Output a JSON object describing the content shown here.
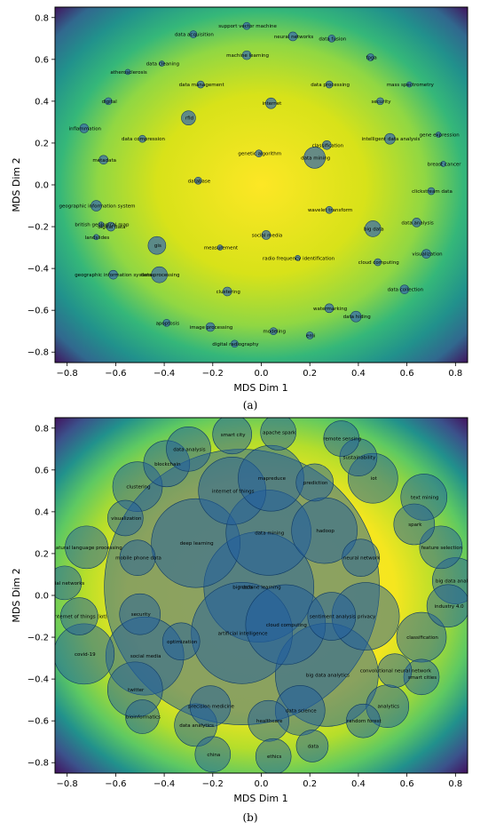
{
  "chart_data": [
    {
      "type": "scatter",
      "caption": "(a)",
      "xlabel": "MDS Dim 1",
      "ylabel": "MDS Dim 2",
      "xlim": [
        -0.85,
        0.85
      ],
      "ylim": [
        -0.85,
        0.85
      ],
      "xticks": [
        "−0.8",
        "−0.6",
        "−0.4",
        "−0.2",
        "0.0",
        "0.2",
        "0.4",
        "0.6",
        "0.8"
      ],
      "yticks": [
        "0.8",
        "0.6",
        "0.4",
        "0.2",
        "0.0",
        "−0.2",
        "−0.4",
        "−0.6",
        "−0.8"
      ],
      "background": "density heatmap (viridis)",
      "point_color": "#3b6ea8",
      "points": [
        {
          "label": "data acquisition",
          "x": -0.28,
          "y": 0.72,
          "size": 4
        },
        {
          "label": "support vector machine",
          "x": -0.06,
          "y": 0.76,
          "size": 4
        },
        {
          "label": "neural networks",
          "x": 0.13,
          "y": 0.71,
          "size": 5
        },
        {
          "label": "data fusion",
          "x": 0.29,
          "y": 0.7,
          "size": 4
        },
        {
          "label": "fpga",
          "x": 0.45,
          "y": 0.61,
          "size": 4
        },
        {
          "label": "machine learning",
          "x": -0.06,
          "y": 0.62,
          "size": 5
        },
        {
          "label": "data cleaning",
          "x": -0.41,
          "y": 0.58,
          "size": 3
        },
        {
          "label": "atherosclerosis",
          "x": -0.55,
          "y": 0.54,
          "size": 3
        },
        {
          "label": "data management",
          "x": -0.25,
          "y": 0.48,
          "size": 4
        },
        {
          "label": "data processing",
          "x": 0.28,
          "y": 0.48,
          "size": 4
        },
        {
          "label": "mass spectrometry",
          "x": 0.61,
          "y": 0.48,
          "size": 3
        },
        {
          "label": "digital",
          "x": -0.63,
          "y": 0.4,
          "size": 4
        },
        {
          "label": "internet",
          "x": 0.04,
          "y": 0.39,
          "size": 6
        },
        {
          "label": "security",
          "x": 0.49,
          "y": 0.4,
          "size": 4
        },
        {
          "label": "rfid",
          "x": -0.3,
          "y": 0.32,
          "size": 8
        },
        {
          "label": "inflammation",
          "x": -0.73,
          "y": 0.27,
          "size": 5
        },
        {
          "label": "gene expression",
          "x": 0.73,
          "y": 0.24,
          "size": 3
        },
        {
          "label": "data compression",
          "x": -0.49,
          "y": 0.22,
          "size": 4
        },
        {
          "label": "intelligent data analysis",
          "x": 0.53,
          "y": 0.22,
          "size": 6
        },
        {
          "label": "classification",
          "x": 0.27,
          "y": 0.19,
          "size": 5
        },
        {
          "label": "genetic algorithm",
          "x": -0.01,
          "y": 0.15,
          "size": 4
        },
        {
          "label": "data mining",
          "x": 0.22,
          "y": 0.13,
          "size": 12
        },
        {
          "label": "metadata",
          "x": -0.65,
          "y": 0.12,
          "size": 5
        },
        {
          "label": "breast cancer",
          "x": 0.75,
          "y": 0.1,
          "size": 3
        },
        {
          "label": "database",
          "x": -0.26,
          "y": 0.02,
          "size": 4
        },
        {
          "label": "clickstream data",
          "x": 0.7,
          "y": -0.03,
          "size": 4
        },
        {
          "label": "geographic information system",
          "x": -0.68,
          "y": -0.1,
          "size": 6
        },
        {
          "label": "wavelet transform",
          "x": 0.28,
          "y": -0.12,
          "size": 4
        },
        {
          "label": "british geological map",
          "x": -0.66,
          "y": -0.19,
          "size": 3
        },
        {
          "label": "digital data",
          "x": -0.62,
          "y": -0.2,
          "size": 5
        },
        {
          "label": "data analysis",
          "x": 0.64,
          "y": -0.18,
          "size": 5
        },
        {
          "label": "big data",
          "x": 0.46,
          "y": -0.21,
          "size": 9
        },
        {
          "label": "landslides",
          "x": -0.68,
          "y": -0.25,
          "size": 3
        },
        {
          "label": "social media",
          "x": 0.02,
          "y": -0.24,
          "size": 5
        },
        {
          "label": "gis",
          "x": -0.43,
          "y": -0.29,
          "size": 10
        },
        {
          "label": "measurement",
          "x": -0.17,
          "y": -0.3,
          "size": 3
        },
        {
          "label": "visualization",
          "x": 0.68,
          "y": -0.33,
          "size": 5
        },
        {
          "label": "radio frequency identification",
          "x": 0.15,
          "y": -0.35,
          "size": 3
        },
        {
          "label": "cloud computing",
          "x": 0.48,
          "y": -0.37,
          "size": 4
        },
        {
          "label": "geographic information systems",
          "x": -0.61,
          "y": -0.43,
          "size": 5
        },
        {
          "label": "data processing",
          "x": -0.42,
          "y": -0.43,
          "size": 9
        },
        {
          "label": "clustering",
          "x": -0.14,
          "y": -0.51,
          "size": 5
        },
        {
          "label": "data collection",
          "x": 0.59,
          "y": -0.5,
          "size": 5
        },
        {
          "label": "watermarking",
          "x": 0.28,
          "y": -0.59,
          "size": 5
        },
        {
          "label": "data hiding",
          "x": 0.39,
          "y": -0.63,
          "size": 6
        },
        {
          "label": "apoptosis",
          "x": -0.39,
          "y": -0.66,
          "size": 4
        },
        {
          "label": "image processing",
          "x": -0.21,
          "y": -0.68,
          "size": 5
        },
        {
          "label": "modeling",
          "x": 0.05,
          "y": -0.7,
          "size": 4
        },
        {
          "label": "emi",
          "x": 0.2,
          "y": -0.72,
          "size": 4
        },
        {
          "label": "digital radiography",
          "x": -0.11,
          "y": -0.76,
          "size": 4
        }
      ]
    },
    {
      "type": "scatter",
      "caption": "(b)",
      "xlabel": "MDS Dim 1",
      "ylabel": "MDS Dim 2",
      "xlim": [
        -0.85,
        0.85
      ],
      "ylim": [
        -0.85,
        0.85
      ],
      "xticks": [
        "−0.8",
        "−0.6",
        "−0.4",
        "−0.2",
        "0.0",
        "0.2",
        "0.4",
        "0.6",
        "0.8"
      ],
      "yticks": [
        "0.8",
        "0.6",
        "0.4",
        "0.2",
        "0.0",
        "−0.2",
        "−0.4",
        "−0.6",
        "−0.8"
      ],
      "background": "density heatmap (viridis)",
      "point_color": "#1f5e9e",
      "points": [
        {
          "label": "apache spark",
          "x": 0.07,
          "y": 0.78,
          "size": 20
        },
        {
          "label": "smart city",
          "x": -0.12,
          "y": 0.77,
          "size": 22
        },
        {
          "label": "remote sensing",
          "x": 0.33,
          "y": 0.75,
          "size": 20
        },
        {
          "label": "data analysis",
          "x": -0.3,
          "y": 0.7,
          "size": 25
        },
        {
          "label": "sustainability",
          "x": 0.4,
          "y": 0.66,
          "size": 21
        },
        {
          "label": "blockchain",
          "x": -0.39,
          "y": 0.63,
          "size": 26
        },
        {
          "label": "mapreduce",
          "x": 0.04,
          "y": 0.56,
          "size": 37
        },
        {
          "label": "prediction",
          "x": 0.22,
          "y": 0.54,
          "size": 21
        },
        {
          "label": "iot",
          "x": 0.46,
          "y": 0.56,
          "size": 28
        },
        {
          "label": "internet of things",
          "x": -0.12,
          "y": 0.5,
          "size": 38
        },
        {
          "label": "clustering",
          "x": -0.51,
          "y": 0.52,
          "size": 28
        },
        {
          "label": "text mining",
          "x": 0.67,
          "y": 0.47,
          "size": 26
        },
        {
          "label": "visualization",
          "x": -0.56,
          "y": 0.37,
          "size": 20
        },
        {
          "label": "spark",
          "x": 0.63,
          "y": 0.34,
          "size": 23
        },
        {
          "label": "hadoop",
          "x": 0.26,
          "y": 0.31,
          "size": 37
        },
        {
          "label": "data mining",
          "x": 0.03,
          "y": 0.3,
          "size": 48
        },
        {
          "label": "deep learning",
          "x": -0.27,
          "y": 0.25,
          "size": 50
        },
        {
          "label": "natural language processing",
          "x": -0.72,
          "y": 0.23,
          "size": 24
        },
        {
          "label": "feature selection",
          "x": 0.74,
          "y": 0.23,
          "size": 24
        },
        {
          "label": "neural network",
          "x": 0.41,
          "y": 0.18,
          "size": 21
        },
        {
          "label": "mobile phone data",
          "x": -0.51,
          "y": 0.18,
          "size": 20
        },
        {
          "label": "big data analysis",
          "x": 0.8,
          "y": 0.07,
          "size": 26
        },
        {
          "label": "social networks",
          "x": -0.81,
          "y": 0.06,
          "size": 19
        },
        {
          "label": "big data",
          "x": -0.08,
          "y": 0.04,
          "size": 155
        },
        {
          "label": "machine learning",
          "x": -0.01,
          "y": 0.04,
          "size": 62
        },
        {
          "label": "industry 4.0",
          "x": 0.77,
          "y": -0.05,
          "size": 24
        },
        {
          "label": "security",
          "x": -0.5,
          "y": -0.09,
          "size": 23
        },
        {
          "label": "sentiment analysis",
          "x": 0.29,
          "y": -0.1,
          "size": 27
        },
        {
          "label": "privacy",
          "x": 0.43,
          "y": -0.1,
          "size": 38
        },
        {
          "label": "internet of things (iot)",
          "x": -0.75,
          "y": -0.1,
          "size": 21
        },
        {
          "label": "cloud computing",
          "x": 0.1,
          "y": -0.14,
          "size": 45
        },
        {
          "label": "artificial intelligence",
          "x": -0.08,
          "y": -0.18,
          "size": 57
        },
        {
          "label": "classification",
          "x": 0.66,
          "y": -0.2,
          "size": 28
        },
        {
          "label": "optimization",
          "x": -0.33,
          "y": -0.22,
          "size": 21
        },
        {
          "label": "covid-19",
          "x": -0.73,
          "y": -0.28,
          "size": 34
        },
        {
          "label": "social media",
          "x": -0.48,
          "y": -0.29,
          "size": 44
        },
        {
          "label": "convolutional neural network",
          "x": 0.55,
          "y": -0.36,
          "size": 19
        },
        {
          "label": "smart cities",
          "x": 0.66,
          "y": -0.39,
          "size": 20
        },
        {
          "label": "big data analytics",
          "x": 0.27,
          "y": -0.38,
          "size": 58
        },
        {
          "label": "twitter",
          "x": -0.52,
          "y": -0.45,
          "size": 31
        },
        {
          "label": "analytics",
          "x": 0.52,
          "y": -0.53,
          "size": 24
        },
        {
          "label": "precision medicine",
          "x": -0.21,
          "y": -0.53,
          "size": 23
        },
        {
          "label": "data science",
          "x": 0.16,
          "y": -0.55,
          "size": 28
        },
        {
          "label": "bioinformatics",
          "x": -0.49,
          "y": -0.58,
          "size": 19
        },
        {
          "label": "random forest",
          "x": 0.42,
          "y": -0.6,
          "size": 19
        },
        {
          "label": "healthcare",
          "x": 0.03,
          "y": -0.6,
          "size": 23
        },
        {
          "label": "data analytics",
          "x": -0.27,
          "y": -0.62,
          "size": 24
        },
        {
          "label": "data",
          "x": 0.21,
          "y": -0.72,
          "size": 18
        },
        {
          "label": "china",
          "x": -0.2,
          "y": -0.76,
          "size": 20
        },
        {
          "label": "ethics",
          "x": 0.05,
          "y": -0.77,
          "size": 20
        }
      ]
    }
  ]
}
